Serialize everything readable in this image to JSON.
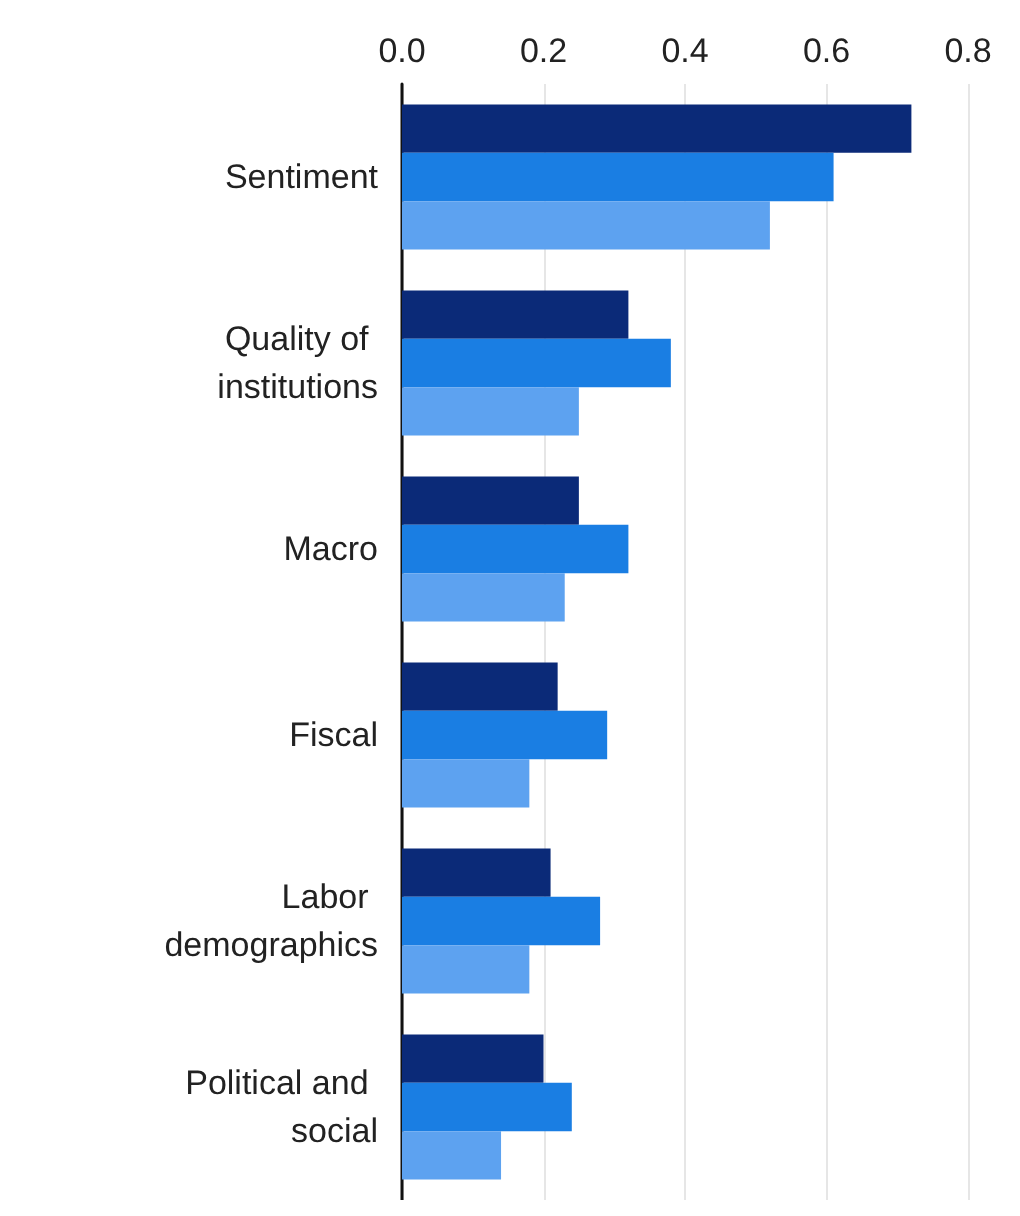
{
  "chart_data": {
    "type": "bar",
    "orientation": "horizontal",
    "categories": [
      "Sentiment",
      "Quality of institutions",
      "Macro",
      "Fiscal",
      "Labor demographics",
      "Political and social"
    ],
    "series": [
      {
        "color": "#0b2a78",
        "values": [
          0.72,
          0.32,
          0.25,
          0.22,
          0.21,
          0.2
        ]
      },
      {
        "color": "#1a7ee3",
        "values": [
          0.61,
          0.38,
          0.32,
          0.29,
          0.28,
          0.24
        ]
      },
      {
        "color": "#5da2f0",
        "values": [
          0.52,
          0.25,
          0.23,
          0.18,
          0.18,
          0.14
        ]
      }
    ],
    "xlim": [
      0,
      0.8
    ],
    "xticks": [
      {
        "value": 0,
        "label": "0.0"
      },
      {
        "value": 0.2,
        "label": "0.2"
      },
      {
        "value": 0.4,
        "label": "0.4"
      },
      {
        "value": 0.6,
        "label": "0.6"
      },
      {
        "value": 0.8,
        "label": "0.8"
      }
    ],
    "grid": "x"
  }
}
